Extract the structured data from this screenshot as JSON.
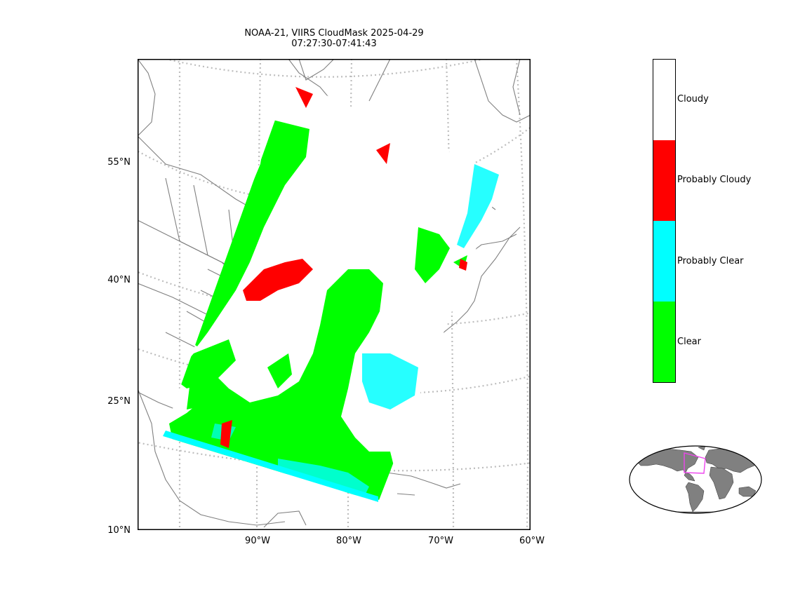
{
  "title": {
    "line1": "NOAA-21, VIIRS CloudMask 2025-04-29",
    "line2": "07:27:30-07:41:43"
  },
  "lat_labels": [
    "55°N",
    "40°N",
    "25°N",
    "10°N"
  ],
  "lon_labels": [
    "90°W",
    "80°W",
    "70°W",
    "60°W"
  ],
  "colorbar": {
    "categories": [
      {
        "label": "Cloudy",
        "color": "#ffffff"
      },
      {
        "label": "Probably Cloudy",
        "color": "#ff0000"
      },
      {
        "label": "Probably Clear",
        "color": "#00ffff"
      },
      {
        "label": "Clear",
        "color": "#00ff00"
      }
    ]
  },
  "colors": {
    "coastline": "#808080",
    "gridline": "#bdbdbd",
    "inset_land": "#808080",
    "inset_box": "#ee44ee"
  }
}
